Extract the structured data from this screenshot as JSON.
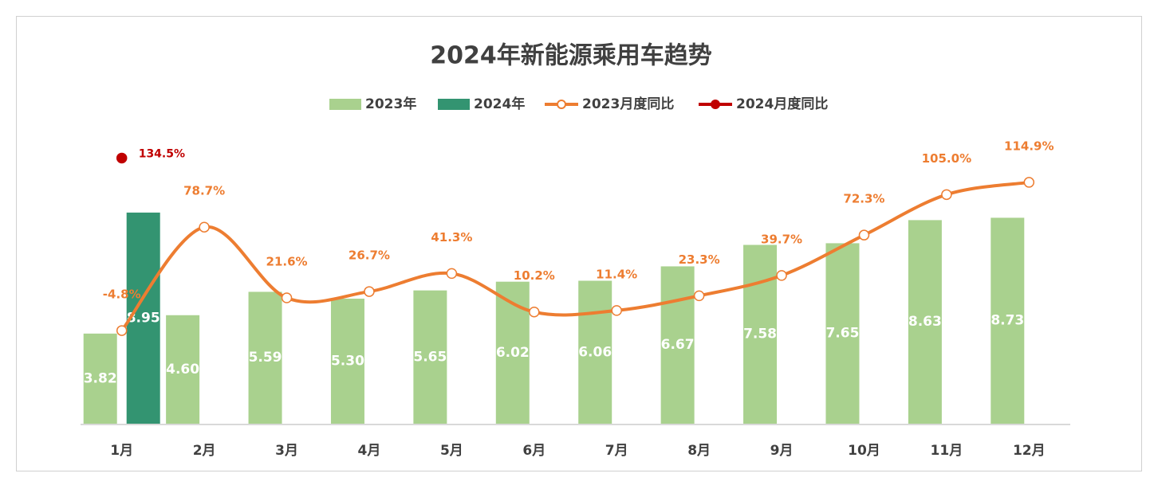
{
  "chart_data": {
    "type": "bar",
    "title": "2024年新能源乘用车趋势",
    "categories": [
      "1月",
      "2月",
      "3月",
      "4月",
      "5月",
      "6月",
      "7月",
      "8月",
      "9月",
      "10月",
      "11月",
      "12月"
    ],
    "ylim": [
      0,
      10.5
    ],
    "y2lim": [
      -80,
      120
    ],
    "grid": false,
    "legend": "top",
    "series": [
      {
        "name": "2023年",
        "type": "bar",
        "color": "#a9d18e",
        "values": [
          3.82,
          4.6,
          5.59,
          5.3,
          5.65,
          6.02,
          6.06,
          6.67,
          7.58,
          7.65,
          8.63,
          8.73
        ],
        "value_labels": [
          "3.82",
          "4.60",
          "5.59",
          "5.30",
          "5.65",
          "6.02",
          "6.06",
          "6.67",
          "7.58",
          "7.65",
          "8.63",
          "8.73"
        ]
      },
      {
        "name": "2024年",
        "type": "bar",
        "color": "#339471",
        "values": [
          8.95,
          null,
          null,
          null,
          null,
          null,
          null,
          null,
          null,
          null,
          null,
          null
        ],
        "value_labels": [
          "8.95",
          null,
          null,
          null,
          null,
          null,
          null,
          null,
          null,
          null,
          null,
          null
        ]
      },
      {
        "name": "2023月度同比",
        "type": "line",
        "axis": "y2",
        "color": "#ed7d31",
        "marker": "open",
        "values": [
          -4.8,
          78.7,
          21.6,
          26.7,
          41.3,
          10.2,
          11.4,
          23.3,
          39.7,
          72.3,
          105.0,
          114.9
        ],
        "value_labels": [
          "-4.8%",
          "78.7%",
          "21.6%",
          "26.7%",
          "41.3%",
          "10.2%",
          "11.4%",
          "23.3%",
          "39.7%",
          "72.3%",
          "105.0%",
          "114.9%"
        ]
      },
      {
        "name": "2024月度同比",
        "type": "line",
        "axis": "y2",
        "color": "#c00000",
        "marker": "filled",
        "label_position": "right",
        "values": [
          134.5,
          null,
          null,
          null,
          null,
          null,
          null,
          null,
          null,
          null,
          null,
          null
        ],
        "value_labels": [
          "134.5%",
          null,
          null,
          null,
          null,
          null,
          null,
          null,
          null,
          null,
          null,
          null
        ]
      }
    ]
  }
}
